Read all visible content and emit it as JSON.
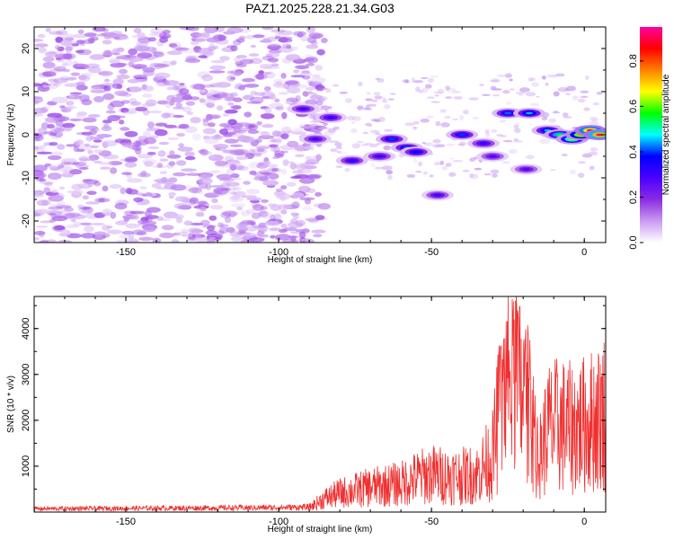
{
  "title": "PAZ1.2025.228.21.34.G03",
  "chart_data": [
    {
      "type": "heatmap",
      "xlabel": "Height of straight line (km)",
      "ylabel": "Frequency (Hz)",
      "xlim": [
        -180,
        7
      ],
      "ylim": [
        -25,
        25
      ],
      "x_ticks": [
        -150,
        -100,
        -50,
        0
      ],
      "y_ticks": [
        -20,
        -10,
        0,
        10,
        20
      ],
      "colorbar": {
        "label": "Normalized spectral amplitude",
        "range": [
          0,
          0.95
        ],
        "ticks": [
          0,
          0.2,
          0.4,
          0.6,
          0.8
        ],
        "colors": [
          "#ffffff",
          "#c99af2",
          "#8a2be2",
          "#4b00ff",
          "#0000ff",
          "#00ffff",
          "#00ff00",
          "#ffff00",
          "#ff8000",
          "#ff0000",
          "#ff00a0"
        ]
      },
      "blobs": [
        {
          "x": -92,
          "y": 6,
          "v": 0.3
        },
        {
          "x": -83,
          "y": 4,
          "v": 0.33
        },
        {
          "x": -88,
          "y": -1,
          "v": 0.3
        },
        {
          "x": -76,
          "y": -6,
          "v": 0.34
        },
        {
          "x": -67,
          "y": -5,
          "v": 0.32
        },
        {
          "x": -63,
          "y": -1,
          "v": 0.4
        },
        {
          "x": -58,
          "y": -3,
          "v": 0.42
        },
        {
          "x": -55,
          "y": -4,
          "v": 0.38
        },
        {
          "x": -48,
          "y": -14,
          "v": 0.3
        },
        {
          "x": -40,
          "y": 0,
          "v": 0.4
        },
        {
          "x": -33,
          "y": -2,
          "v": 0.33
        },
        {
          "x": -30,
          "y": -5,
          "v": 0.28
        },
        {
          "x": -25,
          "y": 5,
          "v": 0.42
        },
        {
          "x": -18,
          "y": 5,
          "v": 0.45
        },
        {
          "x": -19,
          "y": -8,
          "v": 0.28
        },
        {
          "x": -12,
          "y": 1,
          "v": 0.45
        },
        {
          "x": -8,
          "y": 0,
          "v": 0.55
        },
        {
          "x": -4,
          "y": -1,
          "v": 0.62
        },
        {
          "x": -1,
          "y": 0,
          "v": 0.75
        },
        {
          "x": 2,
          "y": 1,
          "v": 0.86
        },
        {
          "x": 5,
          "y": 0,
          "v": 0.9
        }
      ]
    },
    {
      "type": "line",
      "xlabel": "Height of straight line (km)",
      "ylabel": "SNR (10 * v/v)",
      "xlim": [
        -180,
        7
      ],
      "ylim": [
        0,
        4700
      ],
      "x_ticks": [
        -150,
        -100,
        -50,
        0
      ],
      "y_ticks": [
        1000,
        2000,
        3000,
        4000
      ],
      "series_color": "#f03030",
      "envelope": {
        "x": [
          -180,
          -120,
          -100,
          -90,
          -85,
          -80,
          -70,
          -60,
          -55,
          -50,
          -45,
          -40,
          -35,
          -30,
          -28,
          -25,
          -22,
          -20,
          -17,
          -15,
          -12,
          -8,
          -5,
          0,
          5,
          7
        ],
        "y": [
          80,
          100,
          110,
          120,
          350,
          500,
          650,
          750,
          900,
          1000,
          950,
          950,
          1000,
          1500,
          2500,
          3200,
          3400,
          3000,
          2500,
          1300,
          2200,
          2300,
          2200,
          2300,
          2500,
          2700
        ]
      }
    }
  ]
}
